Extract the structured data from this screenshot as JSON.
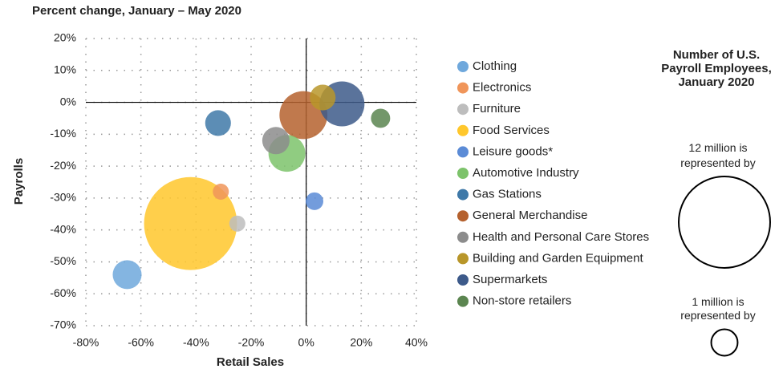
{
  "chart_data": {
    "type": "bubble",
    "title": "Percent change, January – May 2020",
    "x_label": "Retail Sales",
    "y_label": "Payrolls",
    "xlim": [
      -80,
      40
    ],
    "xticks": [
      {
        "value": -80,
        "label": "-80%"
      },
      {
        "value": -60,
        "label": "-60%"
      },
      {
        "value": -40,
        "label": "-40%"
      },
      {
        "value": -20,
        "label": "-20%"
      },
      {
        "value": 0,
        "label": "0%"
      },
      {
        "value": 20,
        "label": "20%"
      },
      {
        "value": 40,
        "label": "40%"
      }
    ],
    "ylim": [
      -70,
      20
    ],
    "yticks": [
      {
        "value": -70,
        "label": "-70%"
      },
      {
        "value": -60,
        "label": "-60%"
      },
      {
        "value": -50,
        "label": "-50%"
      },
      {
        "value": -40,
        "label": "-40%"
      },
      {
        "value": -30,
        "label": "-30%"
      },
      {
        "value": -20,
        "label": "-20%"
      },
      {
        "value": -10,
        "label": "-10%"
      },
      {
        "value": 0,
        "label": "0%"
      },
      {
        "value": 10,
        "label": "10%"
      },
      {
        "value": 20,
        "label": "20%"
      }
    ],
    "grid": true,
    "points": [
      {
        "name": "Clothing",
        "color": "#6fa8dc",
        "x": -65,
        "y": -54,
        "size": 1.2
      },
      {
        "name": "Electronics",
        "color": "#f0955a",
        "x": -31,
        "y": -28,
        "size": 0.37
      },
      {
        "name": "Furniture",
        "color": "#bdbdbd",
        "x": -25,
        "y": -38,
        "size": 0.37
      },
      {
        "name": "Food Services",
        "color": "#ffc72c",
        "x": -42,
        "y": -38,
        "size": 12.4
      },
      {
        "name": "Leisure goods*",
        "color": "#5b8bd6",
        "x": 3,
        "y": -31,
        "size": 0.45
      },
      {
        "name": "Automotive Industry",
        "color": "#7dc36b",
        "x": -7,
        "y": -16,
        "size": 1.95
      },
      {
        "name": "Gas Stations",
        "color": "#3f79a8",
        "x": -32,
        "y": -6.5,
        "size": 0.95
      },
      {
        "name": "General Merchandise",
        "color": "#b5612e",
        "x": -1,
        "y": -4,
        "size": 3.3
      },
      {
        "name": "Health and Personal Care Stores",
        "color": "#8c8c8c",
        "x": -11,
        "y": -12,
        "size": 1.07
      },
      {
        "name": "Building and Garden Equipment",
        "color": "#b8962a",
        "x": 6,
        "y": 1.5,
        "size": 0.95
      },
      {
        "name": "Supermarkets",
        "color": "#3d5a8a",
        "x": 13,
        "y": -0.5,
        "size": 2.9
      },
      {
        "name": "Non-store retailers",
        "color": "#5b8550",
        "x": 27,
        "y": -5,
        "size": 0.53
      }
    ],
    "size_legend_title": "Number of U.S. Payroll Employees, January 2020",
    "size_legend": [
      {
        "label": "12 million is represented by",
        "value": 12
      },
      {
        "label": "1 million is represented by",
        "value": 1
      }
    ]
  }
}
